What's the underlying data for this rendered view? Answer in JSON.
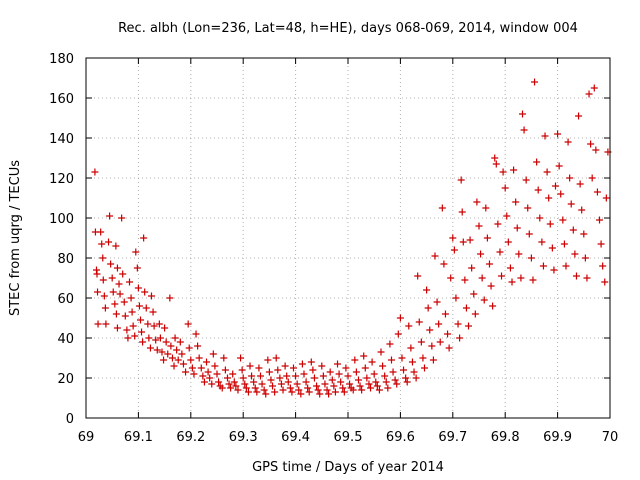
{
  "chart_data": {
    "type": "scatter",
    "title": "Rec. albh (Lon=236, Lat=48, h=HE), days 068-069, 2014, window 004",
    "xlabel": "GPS time / Days of year 2014",
    "ylabel": "STEC from uqrg / TECUs",
    "xlim": [
      69,
      70
    ],
    "ylim": [
      0,
      180
    ],
    "xticks": [
      "69",
      "69.1",
      "69.2",
      "69.3",
      "69.4",
      "69.5",
      "69.6",
      "69.7",
      "69.8",
      "69.9",
      "70"
    ],
    "yticks": [
      "0",
      "20",
      "40",
      "60",
      "80",
      "100",
      "120",
      "140",
      "160",
      "180"
    ],
    "grid": true,
    "marker": "+",
    "series_color": "#cc0000",
    "series": [
      {
        "points": [
          [
            69.017,
            123
          ],
          [
            69.018,
            93
          ],
          [
            69.02,
            74
          ],
          [
            69.021,
            72
          ],
          [
            69.022,
            63
          ],
          [
            69.023,
            47
          ],
          [
            69.028,
            93
          ],
          [
            69.03,
            87
          ],
          [
            69.032,
            80
          ],
          [
            69.033,
            69
          ],
          [
            69.035,
            61
          ],
          [
            69.037,
            55
          ],
          [
            69.038,
            47
          ],
          [
            69.045,
            101
          ],
          [
            69.043,
            88
          ],
          [
            69.047,
            77
          ],
          [
            69.05,
            70
          ],
          [
            69.052,
            63
          ],
          [
            69.055,
            57
          ],
          [
            69.058,
            52
          ],
          [
            69.06,
            45
          ],
          [
            69.057,
            86
          ],
          [
            69.06,
            75
          ],
          [
            69.063,
            67
          ],
          [
            69.065,
            62
          ],
          [
            69.068,
            100
          ],
          [
            69.07,
            72
          ],
          [
            69.073,
            58
          ],
          [
            69.075,
            51
          ],
          [
            69.078,
            44
          ],
          [
            69.08,
            40
          ],
          [
            69.083,
            68
          ],
          [
            69.086,
            60
          ],
          [
            69.088,
            53
          ],
          [
            69.09,
            46
          ],
          [
            69.093,
            41
          ],
          [
            69.095,
            83
          ],
          [
            69.098,
            75
          ],
          [
            69.1,
            65
          ],
          [
            69.102,
            56
          ],
          [
            69.104,
            49
          ],
          [
            69.106,
            43
          ],
          [
            69.108,
            38
          ],
          [
            69.11,
            90
          ],
          [
            69.112,
            63
          ],
          [
            69.115,
            55
          ],
          [
            69.118,
            47
          ],
          [
            69.12,
            40
          ],
          [
            69.123,
            35
          ],
          [
            69.125,
            61
          ],
          [
            69.128,
            53
          ],
          [
            69.13,
            46
          ],
          [
            69.133,
            39
          ],
          [
            69.136,
            34
          ],
          [
            69.14,
            47
          ],
          [
            69.142,
            40
          ],
          [
            69.145,
            33
          ],
          [
            69.148,
            29
          ],
          [
            69.15,
            45
          ],
          [
            69.153,
            38
          ],
          [
            69.156,
            32
          ],
          [
            69.16,
            60
          ],
          [
            69.162,
            36
          ],
          [
            69.165,
            30
          ],
          [
            69.168,
            26
          ],
          [
            69.17,
            40
          ],
          [
            69.173,
            34
          ],
          [
            69.176,
            29
          ],
          [
            69.18,
            38
          ],
          [
            69.183,
            32
          ],
          [
            69.186,
            27
          ],
          [
            69.19,
            23
          ],
          [
            69.195,
            47
          ],
          [
            69.197,
            35
          ],
          [
            69.2,
            29
          ],
          [
            69.203,
            25
          ],
          [
            69.206,
            22
          ],
          [
            69.21,
            42
          ],
          [
            69.213,
            36
          ],
          [
            69.216,
            30
          ],
          [
            69.22,
            25
          ],
          [
            69.223,
            21
          ],
          [
            69.226,
            18
          ],
          [
            69.23,
            28
          ],
          [
            69.233,
            23
          ],
          [
            69.236,
            20
          ],
          [
            69.24,
            17
          ],
          [
            69.243,
            32
          ],
          [
            69.246,
            26
          ],
          [
            69.25,
            22
          ],
          [
            69.253,
            18
          ],
          [
            69.256,
            16
          ],
          [
            69.26,
            15
          ],
          [
            69.263,
            30
          ],
          [
            69.266,
            24
          ],
          [
            69.27,
            20
          ],
          [
            69.273,
            17
          ],
          [
            69.276,
            15
          ],
          [
            69.28,
            22
          ],
          [
            69.283,
            18
          ],
          [
            69.286,
            16
          ],
          [
            69.29,
            14
          ],
          [
            69.295,
            30
          ],
          [
            69.298,
            24
          ],
          [
            69.3,
            20
          ],
          [
            69.303,
            17
          ],
          [
            69.306,
            15
          ],
          [
            69.31,
            13
          ],
          [
            69.313,
            26
          ],
          [
            69.316,
            21
          ],
          [
            69.32,
            18
          ],
          [
            69.323,
            15
          ],
          [
            69.326,
            13
          ],
          [
            69.33,
            25
          ],
          [
            69.333,
            21
          ],
          [
            69.336,
            17
          ],
          [
            69.34,
            14
          ],
          [
            69.343,
            12
          ],
          [
            69.347,
            29
          ],
          [
            69.35,
            23
          ],
          [
            69.353,
            19
          ],
          [
            69.356,
            16
          ],
          [
            69.36,
            13
          ],
          [
            69.363,
            30
          ],
          [
            69.366,
            24
          ],
          [
            69.37,
            20
          ],
          [
            69.373,
            17
          ],
          [
            69.376,
            14
          ],
          [
            69.38,
            26
          ],
          [
            69.383,
            21
          ],
          [
            69.386,
            18
          ],
          [
            69.39,
            15
          ],
          [
            69.393,
            13
          ],
          [
            69.396,
            25
          ],
          [
            69.4,
            21
          ],
          [
            69.403,
            17
          ],
          [
            69.406,
            14
          ],
          [
            69.41,
            12
          ],
          [
            69.413,
            27
          ],
          [
            69.416,
            22
          ],
          [
            69.42,
            18
          ],
          [
            69.423,
            15
          ],
          [
            69.426,
            13
          ],
          [
            69.43,
            28
          ],
          [
            69.433,
            24
          ],
          [
            69.436,
            20
          ],
          [
            69.44,
            16
          ],
          [
            69.443,
            14
          ],
          [
            69.446,
            12
          ],
          [
            69.45,
            26
          ],
          [
            69.453,
            21
          ],
          [
            69.456,
            17
          ],
          [
            69.46,
            14
          ],
          [
            69.463,
            12
          ],
          [
            69.466,
            23
          ],
          [
            69.47,
            19
          ],
          [
            69.473,
            16
          ],
          [
            69.476,
            13
          ],
          [
            69.48,
            27
          ],
          [
            69.483,
            22
          ],
          [
            69.486,
            18
          ],
          [
            69.49,
            15
          ],
          [
            69.493,
            13
          ],
          [
            69.496,
            25
          ],
          [
            69.5,
            21
          ],
          [
            69.503,
            17
          ],
          [
            69.506,
            15
          ],
          [
            69.51,
            14
          ],
          [
            69.513,
            29
          ],
          [
            69.516,
            23
          ],
          [
            69.52,
            19
          ],
          [
            69.523,
            16
          ],
          [
            69.526,
            14
          ],
          [
            69.53,
            31
          ],
          [
            69.533,
            25
          ],
          [
            69.536,
            20
          ],
          [
            69.54,
            17
          ],
          [
            69.543,
            15
          ],
          [
            69.546,
            28
          ],
          [
            69.55,
            22
          ],
          [
            69.553,
            18
          ],
          [
            69.556,
            16
          ],
          [
            69.56,
            14
          ],
          [
            69.563,
            33
          ],
          [
            69.566,
            26
          ],
          [
            69.57,
            21
          ],
          [
            69.573,
            18
          ],
          [
            69.576,
            15
          ],
          [
            69.58,
            37
          ],
          [
            69.583,
            29
          ],
          [
            69.586,
            23
          ],
          [
            69.59,
            19
          ],
          [
            69.593,
            17
          ],
          [
            69.596,
            42
          ],
          [
            69.6,
            50
          ],
          [
            69.603,
            30
          ],
          [
            69.606,
            24
          ],
          [
            69.61,
            20
          ],
          [
            69.613,
            18
          ],
          [
            69.616,
            46
          ],
          [
            69.62,
            35
          ],
          [
            69.623,
            28
          ],
          [
            69.626,
            23
          ],
          [
            69.63,
            20
          ],
          [
            69.633,
            71
          ],
          [
            69.636,
            48
          ],
          [
            69.64,
            38
          ],
          [
            69.643,
            30
          ],
          [
            69.646,
            25
          ],
          [
            69.65,
            64
          ],
          [
            69.653,
            55
          ],
          [
            69.656,
            44
          ],
          [
            69.66,
            36
          ],
          [
            69.663,
            29
          ],
          [
            69.666,
            81
          ],
          [
            69.67,
            58
          ],
          [
            69.673,
            47
          ],
          [
            69.676,
            38
          ],
          [
            69.68,
            105
          ],
          [
            69.683,
            77
          ],
          [
            69.686,
            52
          ],
          [
            69.69,
            42
          ],
          [
            69.693,
            35
          ],
          [
            69.696,
            70
          ],
          [
            69.7,
            90
          ],
          [
            69.703,
            84
          ],
          [
            69.706,
            60
          ],
          [
            69.71,
            47
          ],
          [
            69.713,
            40
          ],
          [
            69.716,
            119
          ],
          [
            69.718,
            103
          ],
          [
            69.72,
            88
          ],
          [
            69.723,
            69
          ],
          [
            69.726,
            55
          ],
          [
            69.73,
            46
          ],
          [
            69.733,
            89
          ],
          [
            69.736,
            75
          ],
          [
            69.74,
            62
          ],
          [
            69.743,
            52
          ],
          [
            69.746,
            108
          ],
          [
            69.75,
            96
          ],
          [
            69.753,
            82
          ],
          [
            69.756,
            70
          ],
          [
            69.76,
            59
          ],
          [
            69.763,
            105
          ],
          [
            69.766,
            90
          ],
          [
            69.77,
            77
          ],
          [
            69.773,
            66
          ],
          [
            69.776,
            56
          ],
          [
            69.78,
            130
          ],
          [
            69.783,
            127
          ],
          [
            69.786,
            97
          ],
          [
            69.79,
            83
          ],
          [
            69.793,
            71
          ],
          [
            69.796,
            123
          ],
          [
            69.8,
            115
          ],
          [
            69.803,
            101
          ],
          [
            69.806,
            88
          ],
          [
            69.81,
            75
          ],
          [
            69.813,
            68
          ],
          [
            69.816,
            124
          ],
          [
            69.82,
            108
          ],
          [
            69.823,
            95
          ],
          [
            69.826,
            82
          ],
          [
            69.83,
            70
          ],
          [
            69.833,
            152
          ],
          [
            69.836,
            144
          ],
          [
            69.84,
            119
          ],
          [
            69.843,
            105
          ],
          [
            69.846,
            92
          ],
          [
            69.85,
            80
          ],
          [
            69.853,
            69
          ],
          [
            69.856,
            168
          ],
          [
            69.86,
            128
          ],
          [
            69.863,
            114
          ],
          [
            69.866,
            100
          ],
          [
            69.87,
            88
          ],
          [
            69.873,
            76
          ],
          [
            69.876,
            141
          ],
          [
            69.88,
            123
          ],
          [
            69.883,
            110
          ],
          [
            69.886,
            97
          ],
          [
            69.89,
            85
          ],
          [
            69.893,
            74
          ],
          [
            69.896,
            116
          ],
          [
            69.9,
            142
          ],
          [
            69.903,
            126
          ],
          [
            69.906,
            112
          ],
          [
            69.91,
            99
          ],
          [
            69.913,
            87
          ],
          [
            69.916,
            76
          ],
          [
            69.92,
            138
          ],
          [
            69.923,
            120
          ],
          [
            69.926,
            107
          ],
          [
            69.93,
            94
          ],
          [
            69.933,
            82
          ],
          [
            69.936,
            71
          ],
          [
            69.94,
            151
          ],
          [
            69.943,
            117
          ],
          [
            69.946,
            104
          ],
          [
            69.95,
            92
          ],
          [
            69.953,
            80
          ],
          [
            69.956,
            70
          ],
          [
            69.96,
            162
          ],
          [
            69.963,
            137
          ],
          [
            69.966,
            120
          ],
          [
            69.97,
            165
          ],
          [
            69.973,
            134
          ],
          [
            69.976,
            113
          ],
          [
            69.98,
            99
          ],
          [
            69.983,
            87
          ],
          [
            69.986,
            76
          ],
          [
            69.99,
            68
          ],
          [
            69.993,
            110
          ],
          [
            69.996,
            133
          ]
        ]
      }
    ]
  }
}
